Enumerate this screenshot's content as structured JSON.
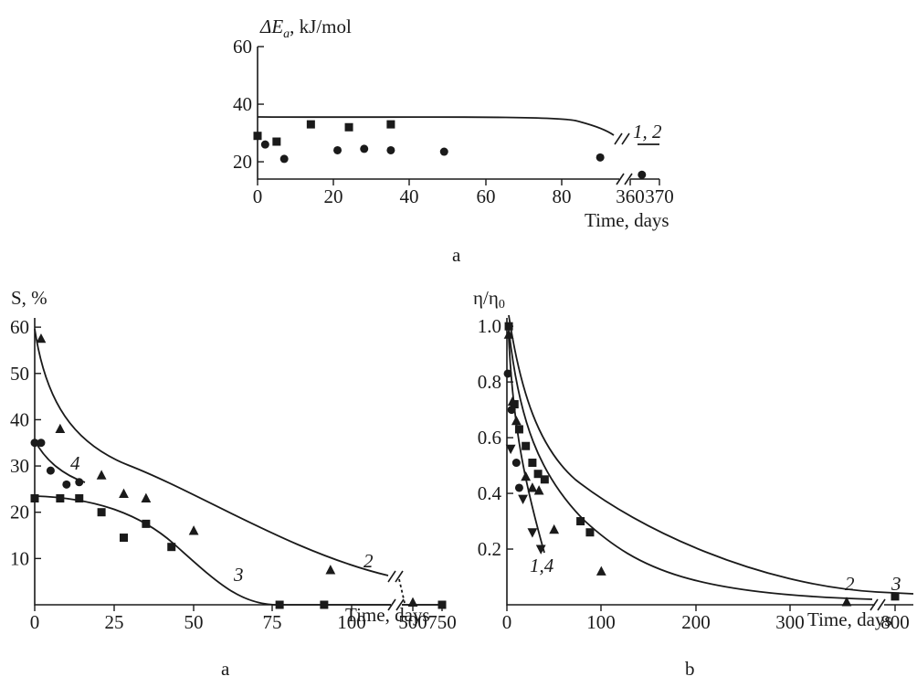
{
  "chart_data": [
    {
      "id": "top",
      "type": "scatter",
      "panel_label": "a",
      "ylabel": "ΔE",
      "ylabel_sub": "a",
      "ylabel_unit": ", kJ/mol",
      "xlabel": "Time, days",
      "ylim": [
        14,
        60
      ],
      "yticks": [
        20,
        40,
        60
      ],
      "xticks": [
        "0",
        "20",
        "40",
        "60",
        "80",
        "360",
        "370"
      ],
      "curve_labels": [
        {
          "text": "1, 2"
        }
      ],
      "series": [
        {
          "marker": "square",
          "points": [
            [
              0,
              29
            ],
            [
              5,
              27
            ],
            [
              14,
              33
            ],
            [
              24,
              32
            ],
            [
              35,
              33
            ]
          ]
        },
        {
          "marker": "circle",
          "points": [
            [
              2,
              26
            ],
            [
              7,
              21
            ],
            [
              21,
              24
            ],
            [
              28,
              24.5
            ],
            [
              35,
              24
            ],
            [
              49,
              23.5
            ],
            [
              90,
              21.5
            ],
            [
              364,
              15.5
            ]
          ]
        }
      ]
    },
    {
      "id": "bl",
      "type": "scatter",
      "panel_label": "a",
      "ylabel": "S, %",
      "xlabel": "Time, days",
      "ylim": [
        0,
        62
      ],
      "yticks": [
        10,
        20,
        30,
        40,
        50,
        60
      ],
      "xticks": [
        "0",
        "25",
        "50",
        "75",
        "100",
        "500",
        "750"
      ],
      "curve_labels": [
        {
          "text": "2"
        },
        {
          "text": "3"
        },
        {
          "text": "4"
        }
      ],
      "series": [
        {
          "marker": "triangle",
          "points": [
            [
              2,
              57.5
            ],
            [
              8,
              38
            ],
            [
              21,
              28
            ],
            [
              28,
              24
            ],
            [
              35,
              23
            ],
            [
              50,
              16
            ],
            [
              93,
              7.5
            ],
            [
              500,
              0.5
            ]
          ]
        },
        {
          "marker": "circle",
          "points": [
            [
              0,
              35
            ],
            [
              2,
              35
            ],
            [
              5,
              29
            ],
            [
              10,
              26
            ],
            [
              14,
              26.5
            ]
          ]
        },
        {
          "marker": "square",
          "points": [
            [
              0,
              23
            ],
            [
              8,
              23
            ],
            [
              14,
              23
            ],
            [
              21,
              20
            ],
            [
              28,
              14.5
            ],
            [
              35,
              17.5
            ],
            [
              43,
              12.5
            ],
            [
              77,
              0
            ],
            [
              91,
              0
            ],
            [
              750,
              0
            ]
          ]
        }
      ]
    },
    {
      "id": "br",
      "type": "scatter",
      "panel_label": "b",
      "ylabel": "η/η",
      "ylabel_sub": "0",
      "xlabel": "Time, days",
      "ylim": [
        0,
        1.03
      ],
      "yticks": [
        "0.2",
        "0.4",
        "0.6",
        "0.8",
        "1.0"
      ],
      "xticks": [
        "0",
        "100",
        "200",
        "300",
        "800"
      ],
      "curve_labels": [
        {
          "text": "1,4"
        },
        {
          "text": "2"
        },
        {
          "text": "3"
        }
      ],
      "series": [
        {
          "marker": "square",
          "points": [
            [
              2,
              1.0
            ],
            [
              8,
              0.72
            ],
            [
              13,
              0.63
            ],
            [
              20,
              0.57
            ],
            [
              27,
              0.51
            ],
            [
              33,
              0.47
            ],
            [
              40,
              0.45
            ],
            [
              78,
              0.3
            ],
            [
              88,
              0.26
            ],
            [
              800,
              0.03
            ]
          ]
        },
        {
          "marker": "triangle",
          "points": [
            [
              2,
              0.97
            ],
            [
              6,
              0.73
            ],
            [
              10,
              0.66
            ],
            [
              20,
              0.46
            ],
            [
              27,
              0.42
            ],
            [
              34,
              0.41
            ],
            [
              50,
              0.27
            ],
            [
              100,
              0.12
            ],
            [
              360,
              0.01
            ]
          ]
        },
        {
          "marker": "circle",
          "points": [
            [
              1,
              0.83
            ],
            [
              5,
              0.7
            ],
            [
              10,
              0.51
            ],
            [
              13,
              0.42
            ]
          ]
        },
        {
          "marker": "tri-down",
          "points": [
            [
              4,
              0.56
            ],
            [
              17,
              0.38
            ],
            [
              27,
              0.26
            ],
            [
              36,
              0.2
            ]
          ]
        }
      ]
    }
  ]
}
